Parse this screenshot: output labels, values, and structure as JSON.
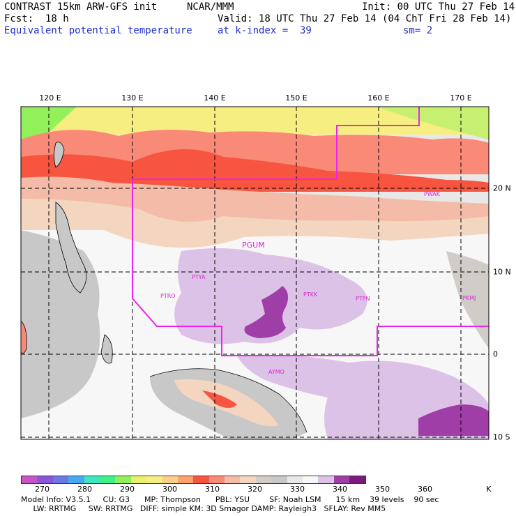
{
  "header": {
    "title": "CONTRAST 15km ARW-GFS init",
    "org": "NCAR/MMM",
    "init": "Init: 00 UTC Thu 27 Feb 14",
    "fcst": "Fcst:  18 h",
    "valid": "Valid: 18 UTC Thu 27 Feb 14 (04 ChT Fri 28 Feb 14)",
    "field": "Equivalent potential temperature",
    "level": "at k-index =  39",
    "smooth": "sm= 2"
  },
  "axes": {
    "lon_labels": [
      "120 E",
      "130 E",
      "140 E",
      "150 E",
      "160 E",
      "170 E"
    ],
    "lat_labels": [
      "20 N",
      "10 N",
      "0",
      "10 S"
    ]
  },
  "stations": [
    "PGUM",
    "PTYA",
    "PTRO",
    "PTKK",
    "PTPN",
    "PKMJ",
    "PWAK",
    "AYMO"
  ],
  "colorbar": {
    "labels": [
      "270",
      "280",
      "290",
      "300",
      "310",
      "320",
      "330",
      "340",
      "350",
      "360",
      "K"
    ],
    "colors": [
      "#c854c8",
      "#8a56d8",
      "#6a78e6",
      "#4aa8f0",
      "#3ee6c0",
      "#3ef28a",
      "#92f05a",
      "#e8f26a",
      "#f7ee82",
      "#fcd08c",
      "#fba36e",
      "#f7553f",
      "#fa8a78",
      "#f4bca8",
      "#f3d5c0",
      "#d0ccc8",
      "#c8c8c8",
      "#e8e8e8",
      "#f7f7f7",
      "#dcc2e6",
      "#a03ea8",
      "#7a1a7e"
    ]
  },
  "footer": {
    "line1": "Model Info: V3.5.1     CU: G3      MP: Thompson      PBL: YSU        SF: Noah LSM      15 km    39 levels    90 sec",
    "line2": "     LW: RRTMG     SW: RRTMG   DIFF: simple KM: 3D Smagor DAMP: Rayleigh3   SFLAY: Rev MM5"
  }
}
